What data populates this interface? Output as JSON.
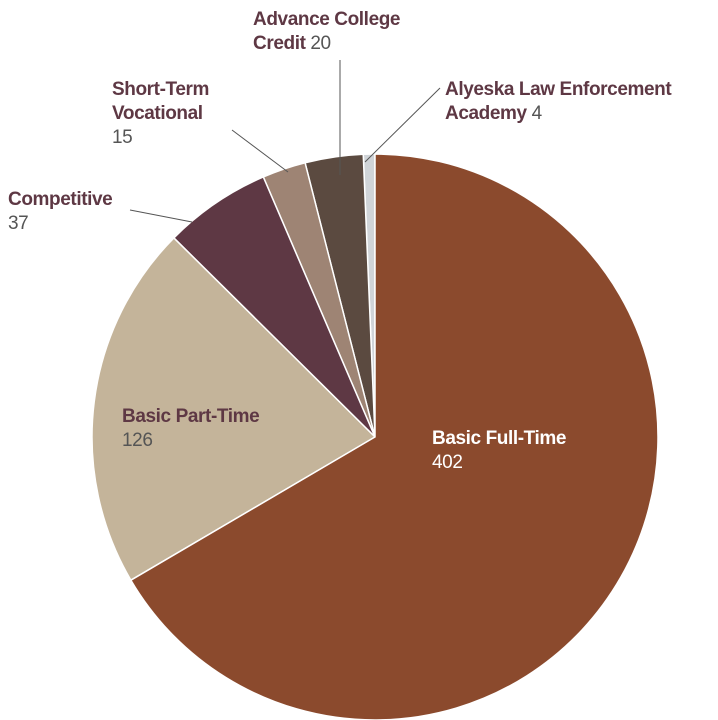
{
  "chart_data": {
    "type": "pie",
    "categories": [
      "Basic Full-Time",
      "Basic Part-Time",
      "Competitive",
      "Short-Term Vocational",
      "Advance College Credit",
      "Alyeska Law Enforcement Academy"
    ],
    "values": [
      402,
      126,
      37,
      15,
      20,
      4
    ],
    "colors": [
      "#8b4a2d",
      "#c4b49a",
      "#5e3844",
      "#9e8474",
      "#5b4a40",
      "#d0d4d8"
    ]
  }
}
